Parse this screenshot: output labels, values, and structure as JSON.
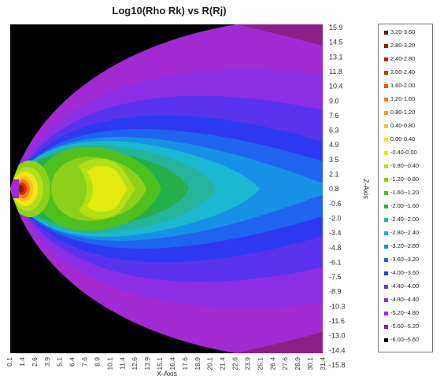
{
  "chart_data": {
    "type": "heatmap",
    "title": "Log10(Rho Rk) vs R(Rj)",
    "xlabel": "X-Axis",
    "ylabel": "Z-Axis",
    "x_ticks": [
      "0.1",
      "1.4",
      "2.6",
      "3.9",
      "5.1",
      "6.4",
      "7.6",
      "8.9",
      "10.1",
      "11.4",
      "12.6",
      "13.9",
      "15.1",
      "16.4",
      "17.6",
      "18.9",
      "20.1",
      "21.4",
      "22.6",
      "23.9",
      "25.1",
      "26.4",
      "27.6",
      "28.9",
      "30.1",
      "31.4"
    ],
    "y_ticks": [
      "15.9",
      "14.5",
      "13.1",
      "11.8",
      "10.4",
      "9.0",
      "7.6",
      "6.3",
      "4.9",
      "3.5",
      "2.1",
      "0.8",
      "-0.6",
      "-2.0",
      "-3.4",
      "-4.8",
      "-6.1",
      "-7.5",
      "-8.9",
      "-10.3",
      "-11.6",
      "-13.0",
      "-14.4",
      "-15.8"
    ],
    "legend": [
      {
        "label": "3.20-3.60",
        "color": "#7a1010"
      },
      {
        "label": "2.80-3.20",
        "color": "#8f1c0c"
      },
      {
        "label": "2.40-2.80",
        "color": "#b8260a"
      },
      {
        "label": "2.00-2.40",
        "color": "#e02a0c"
      },
      {
        "label": "1.60-2.00",
        "color": "#f24a0e"
      },
      {
        "label": "1.20-1.60",
        "color": "#f57d12"
      },
      {
        "label": "0.80-1.20",
        "color": "#f7a316"
      },
      {
        "label": "0.40-0.80",
        "color": "#f8c21a"
      },
      {
        "label": "0.00-0.40",
        "color": "#f4e21c"
      },
      {
        "label": "-0.40-0.00",
        "color": "#e2ea10"
      },
      {
        "label": "-0.80--0.40",
        "color": "#b4df14"
      },
      {
        "label": "-1.20--0.80",
        "color": "#8bd11c"
      },
      {
        "label": "-1.60--1.20",
        "color": "#4dc01e"
      },
      {
        "label": "-2.00--1.60",
        "color": "#26b04a"
      },
      {
        "label": "-2.40--2.00",
        "color": "#24b49a"
      },
      {
        "label": "-2.80--2.40",
        "color": "#1bb7d0"
      },
      {
        "label": "-3.20--2.80",
        "color": "#1691e6"
      },
      {
        "label": "-3.60--3.20",
        "color": "#2063ee"
      },
      {
        "label": "-4.00--3.60",
        "color": "#2e3aef"
      },
      {
        "label": "-4.40--4.00",
        "color": "#5a34ec"
      },
      {
        "label": "-4.80--4.40",
        "color": "#8a2fe6"
      },
      {
        "label": "-5.20--4.80",
        "color": "#a22ad2"
      },
      {
        "label": "-5.60--5.20",
        "color": "#8f1f86"
      },
      {
        "label": "-6.00--5.60",
        "color": "#000000"
      }
    ],
    "background_color": "#000000"
  }
}
